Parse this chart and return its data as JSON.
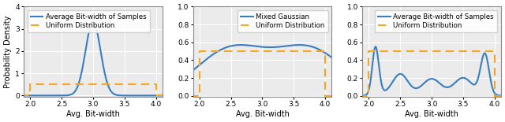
{
  "xlim": [
    1.9,
    4.1
  ],
  "xlabel": "Avg. Bit-width",
  "uniform_color": "#f5a623",
  "gaussian_color": "#3a7ebf",
  "line_width": 1.5,
  "plot1": {
    "ylabel": "Probability Density",
    "ylim": [
      -0.05,
      4.0
    ],
    "yticks": [
      0.0,
      1.0,
      2.0,
      3.0,
      4.0
    ],
    "uniform_y": 0.5,
    "gaussian_mean": 3.0,
    "gaussian_std": 0.12,
    "legend_labels": [
      "Average Bit-width of Samples",
      "Uniform Distribution"
    ]
  },
  "plot2": {
    "ylabel": "",
    "ylim": [
      -0.01,
      1.0
    ],
    "yticks": [
      0.0,
      0.2,
      0.4,
      0.6,
      0.8,
      1.0
    ],
    "uniform_y": 0.5,
    "mixed_mean1": 2.5,
    "mixed_mean2": 3.75,
    "mixed_std": 0.55,
    "mixed_scale": 0.57,
    "legend_labels": [
      "Mixed Gaussian",
      "Uniform Distribution"
    ]
  },
  "plot3": {
    "ylabel": "",
    "ylim": [
      -0.01,
      1.0
    ],
    "yticks": [
      0.0,
      0.2,
      0.4,
      0.6,
      0.8,
      1.0
    ],
    "uniform_y": 0.5,
    "means": [
      2.1,
      2.5,
      3.0,
      3.5,
      3.85
    ],
    "stds": [
      0.055,
      0.12,
      0.14,
      0.14,
      0.07
    ],
    "weights": [
      1.0,
      0.8,
      0.7,
      0.75,
      1.0
    ],
    "edge_mean1": 2.0,
    "edge_mean2": 4.0,
    "edge_std": 0.12,
    "legend_labels": [
      "Average Bit-width of Samples",
      "Uniform Distribution"
    ]
  },
  "fig_width": 6.4,
  "fig_height": 1.55,
  "dpi": 100,
  "background_color": "#ebebeb"
}
